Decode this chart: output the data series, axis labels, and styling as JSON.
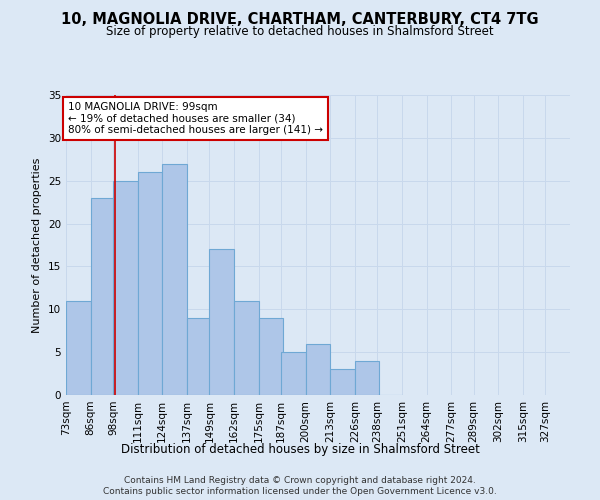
{
  "title1": "10, MAGNOLIA DRIVE, CHARTHAM, CANTERBURY, CT4 7TG",
  "title2": "Size of property relative to detached houses in Shalmsford Street",
  "xlabel": "Distribution of detached houses by size in Shalmsford Street",
  "ylabel": "Number of detached properties",
  "footer1": "Contains HM Land Registry data © Crown copyright and database right 2024.",
  "footer2": "Contains public sector information licensed under the Open Government Licence v3.0.",
  "annotation_line1": "10 MAGNOLIA DRIVE: 99sqm",
  "annotation_line2": "← 19% of detached houses are smaller (34)",
  "annotation_line3": "80% of semi-detached houses are larger (141) →",
  "bar_left_edges": [
    73,
    86,
    98,
    111,
    124,
    137,
    149,
    162,
    175,
    187,
    200,
    213,
    226,
    238
  ],
  "bar_heights": [
    11,
    23,
    25,
    26,
    27,
    9,
    17,
    11,
    9,
    5,
    6,
    3,
    4,
    0
  ],
  "bin_width": 13,
  "x_tick_labels": [
    "73sqm",
    "86sqm",
    "98sqm",
    "111sqm",
    "124sqm",
    "137sqm",
    "149sqm",
    "162sqm",
    "175sqm",
    "187sqm",
    "200sqm",
    "213sqm",
    "226sqm",
    "238sqm",
    "251sqm",
    "264sqm",
    "277sqm",
    "289sqm",
    "302sqm",
    "315sqm",
    "327sqm"
  ],
  "x_tick_positions": [
    73,
    86,
    98,
    111,
    124,
    137,
    149,
    162,
    175,
    187,
    200,
    213,
    226,
    238,
    251,
    264,
    277,
    289,
    302,
    315,
    327
  ],
  "ylim": [
    0,
    35
  ],
  "xlim": [
    73,
    340
  ],
  "bar_color": "#aec6e8",
  "bar_edge_color": "#6fa8d4",
  "grid_color": "#c8d8ec",
  "marker_x": 99,
  "marker_color": "#cc0000",
  "annotation_box_color": "#ffffff",
  "annotation_box_edge_color": "#cc0000",
  "background_color": "#dce8f5",
  "title1_fontsize": 10.5,
  "title2_fontsize": 8.5,
  "xlabel_fontsize": 8.5,
  "ylabel_fontsize": 8.0,
  "tick_fontsize": 7.5,
  "annotation_fontsize": 7.5,
  "footer_fontsize": 6.5
}
